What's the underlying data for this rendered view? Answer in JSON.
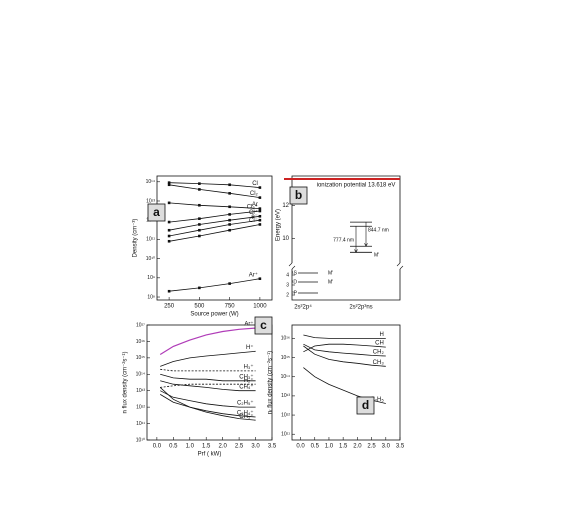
{
  "chart_data": [
    {
      "type": "line",
      "panel": "a",
      "log_y": true,
      "markers": true,
      "y_label": "Density (cm⁻³)",
      "x_label": "Source power (W)",
      "x": [
        250,
        500,
        750,
        1000
      ],
      "xlim": [
        150,
        1100
      ],
      "xticks": [
        250,
        500,
        750,
        1000
      ],
      "ylim": [
        70000000.0,
        200000000000000.0
      ],
      "yticks": [
        {
          "value": 100000000.0,
          "label": "10⁸"
        },
        {
          "value": 1000000000.0,
          "label": "10⁹"
        },
        {
          "value": 10000000000.0,
          "label": "10¹⁰"
        },
        {
          "value": 100000000000.0,
          "label": "10¹¹"
        },
        {
          "value": 1000000000000.0,
          "label": "10¹²"
        },
        {
          "value": 10000000000000.0,
          "label": "10¹³"
        },
        {
          "value": 100000000000000.0,
          "label": "10¹⁴"
        }
      ],
      "series": [
        {
          "name": "Cl",
          "color": "#111111",
          "values": [
            90000000000000.0,
            80000000000000.0,
            70000000000000.0,
            50000000000000.0
          ]
        },
        {
          "name": "Cl₂",
          "color": "#111111",
          "values": [
            70000000000000.0,
            40000000000000.0,
            25000000000000.0,
            15000000000000.0
          ]
        },
        {
          "name": "Ar",
          "color": "#111111",
          "values": [
            8000000000000.0,
            6000000000000.0,
            5000000000000.0,
            4000000000000.0
          ]
        },
        {
          "name": "Cl₂⁺",
          "color": "#111111",
          "values": [
            800000000000.0,
            1200000000000.0,
            2000000000000.0,
            3000000000000.0
          ]
        },
        {
          "name": "Cl⁺",
          "color": "#111111",
          "values": [
            300000000000.0,
            600000000000.0,
            1000000000000.0,
            1600000000000.0
          ]
        },
        {
          "name": "e⁻",
          "color": "#111111",
          "values": [
            150000000000.0,
            300000000000.0,
            600000000000.0,
            1000000000000.0
          ]
        },
        {
          "name": "Cl⁻",
          "color": "#111111",
          "values": [
            80000000000.0,
            150000000000.0,
            300000000000.0,
            600000000000.0
          ]
        },
        {
          "name": "Ar⁺",
          "color": "#111111",
          "values": [
            200000000.0,
            300000000.0,
            500000000.0,
            900000000.0
          ]
        }
      ]
    },
    {
      "type": "energy_levels",
      "panel": "b",
      "y_label": "Energy (eV)",
      "ylim": [
        8.5,
        13.8
      ],
      "yticks": [
        10,
        12
      ],
      "ylim_low": [
        1.5,
        4.6
      ],
      "yticks_low": [
        2,
        3,
        4
      ],
      "ionization": 13.618,
      "ionization_label": "ionization potential 13.618 eV",
      "ionization_color": "#cc2222",
      "configurations": [
        {
          "label": "2s²2p⁴",
          "levels": [
            {
              "energy": 4.2,
              "label": "¹S",
              "tag": "M'"
            },
            {
              "energy": 3.3,
              "label": "¹D",
              "tag": "M'"
            },
            {
              "energy": 2.2,
              "label": "³P"
            }
          ]
        },
        {
          "label": "2s²2p³ns",
          "levels": [
            {
              "energy": 10.99
            },
            {
              "energy": 10.74
            },
            {
              "energy": 9.52
            },
            {
              "energy": 9.15,
              "label": "M'"
            }
          ]
        }
      ],
      "transitions": [
        {
          "from": 10.74,
          "to": 9.15,
          "label": "777.4 nm"
        },
        {
          "from": 10.99,
          "to": 9.52,
          "label": "844.7 nm"
        }
      ]
    },
    {
      "type": "line",
      "panel": "c",
      "log_y": true,
      "y_label": "n flux density (cm⁻²s⁻¹)",
      "x_label": "Prf ( kW)",
      "x": [
        0.1,
        0.5,
        1,
        1.5,
        2,
        2.5,
        3
      ],
      "xlim": [
        -0.3,
        3.5
      ],
      "xticks": [
        {
          "value": 0,
          "label": "0.0"
        },
        0.5,
        {
          "value": 1,
          "label": "1.0"
        },
        1.5,
        {
          "value": 2,
          "label": "2.0"
        },
        2.5,
        {
          "value": 3,
          "label": "3.0"
        },
        3.5
      ],
      "ylim": [
        10000000000.0,
        1e+17
      ],
      "yticks": [
        {
          "value": 10000000000.0,
          "label": "10¹⁰"
        },
        {
          "value": 100000000000.0,
          "label": "10¹¹"
        },
        {
          "value": 1000000000000.0,
          "label": "10¹²"
        },
        {
          "value": 10000000000000.0,
          "label": "10¹³"
        },
        {
          "value": 100000000000000.0,
          "label": "10¹⁴"
        },
        {
          "value": 1000000000000000.0,
          "label": "10¹⁵"
        },
        {
          "value": 1e+16,
          "label": "10¹⁶"
        },
        {
          "value": 1e+17,
          "label": "10¹⁷"
        }
      ],
      "series": [
        {
          "name": "Ar⁺",
          "color": "#b03cb8",
          "values": [
            1600000000000000.0,
            5000000000000000.0,
            1.2e+16,
            2.5e+16,
            4e+16,
            5.5e+16,
            6.5e+16
          ]
        },
        {
          "name": "H⁺",
          "color": "#111111",
          "values": [
            300000000000000.0,
            600000000000000.0,
            1000000000000000.0,
            1300000000000000.0,
            1600000000000000.0,
            2000000000000000.0,
            2500000000000000.0
          ]
        },
        {
          "name": "H₃⁺",
          "color": "#111111",
          "dashed": true,
          "values": [
            200000000000000.0,
            160000000000000.0,
            160000000000000.0,
            160000000000000.0,
            160000000000000.0,
            160000000000000.0,
            160000000000000.0
          ]
        },
        {
          "name": "CH₃⁺",
          "color": "#111111",
          "values": [
            100000000000000.0,
            60000000000000.0,
            50000000000000.0,
            50000000000000.0,
            40000000000000.0,
            40000000000000.0,
            40000000000000.0
          ]
        },
        {
          "name": "H₂⁺",
          "color": "#111111",
          "dashed": true,
          "values": [
            16000000000000.0,
            20000000000000.0,
            25000000000000.0,
            25000000000000.0,
            25000000000000.0,
            25000000000000.0,
            25000000000000.0
          ]
        },
        {
          "name": "CH₄⁺",
          "color": "#111111",
          "values": [
            40000000000000.0,
            25000000000000.0,
            20000000000000.0,
            16000000000000.0,
            12000000000000.0,
            10000000000000.0,
            10000000000000.0
          ]
        },
        {
          "name": "C₂H₅⁺",
          "color": "#111111",
          "values": [
            10000000000000.0,
            4000000000000.0,
            2500000000000.0,
            1600000000000.0,
            1200000000000.0,
            1000000000000.0,
            1000000000000.0
          ]
        },
        {
          "name": "C₂H₄⁺",
          "color": "#111111",
          "values": [
            6000000000000.0,
            2000000000000.0,
            1000000000000.0,
            600000000000.0,
            400000000000.0,
            300000000000.0,
            250000000000.0
          ]
        },
        {
          "name": "CH₅⁺",
          "color": "#111111",
          "values": [
            16000000000000.0,
            3000000000000.0,
            1000000000000.0,
            500000000000.0,
            300000000000.0,
            200000000000.0,
            160000000000.0
          ]
        }
      ]
    },
    {
      "type": "line",
      "panel": "d",
      "log_y": true,
      "y_label": "nᵣ flux density (cm⁻²s⁻¹)",
      "x": [
        0.1,
        0.5,
        1,
        1.5,
        2,
        2.5,
        3
      ],
      "xlim": [
        -0.3,
        3.5
      ],
      "xticks": [
        {
          "value": 0,
          "label": "0.0"
        },
        0.5,
        {
          "value": 1,
          "label": "1.0"
        },
        1.5,
        {
          "value": 2,
          "label": "2.0"
        },
        2.5,
        {
          "value": 3,
          "label": "3.0"
        },
        3.5
      ],
      "ylim": [
        50000000000.0,
        5e+16
      ],
      "yticks": [
        {
          "value": 100000000000.0,
          "label": "10¹¹"
        },
        {
          "value": 1000000000000.0,
          "label": "10¹²"
        },
        {
          "value": 10000000000000.0,
          "label": "10¹³"
        },
        {
          "value": 100000000000000.0,
          "label": "10¹⁴"
        },
        {
          "value": 1000000000000000.0,
          "label": "10¹⁵"
        },
        {
          "value": 1e+16,
          "label": "10¹⁶"
        }
      ],
      "series": [
        {
          "name": "H",
          "color": "#111111",
          "values": [
            1.5e+16,
            1.1e+16,
            1e+16,
            1e+16,
            1e+16,
            1e+16,
            1e+16
          ]
        },
        {
          "name": "CH",
          "color": "#111111",
          "values": [
            2000000000000000.0,
            4000000000000000.0,
            5000000000000000.0,
            5000000000000000.0,
            4500000000000000.0,
            4000000000000000.0,
            3500000000000000.0
          ]
        },
        {
          "name": "CH₂",
          "color": "#111111",
          "values": [
            5000000000000000.0,
            2500000000000000.0,
            2000000000000000.0,
            1700000000000000.0,
            1500000000000000.0,
            1300000000000000.0,
            1200000000000000.0
          ]
        },
        {
          "name": "CH₃",
          "color": "#111111",
          "values": [
            4000000000000000.0,
            1500000000000000.0,
            800000000000000.0,
            600000000000000.0,
            500000000000000.0,
            400000000000000.0,
            350000000000000.0
          ]
        },
        {
          "name": "C₂H₅",
          "color": "#111111",
          "values": [
            300000000000000.0,
            100000000000000.0,
            40000000000000.0,
            20000000000000.0,
            10000000000000.0,
            6000000000000.0,
            4000000000000.0
          ]
        }
      ]
    }
  ]
}
